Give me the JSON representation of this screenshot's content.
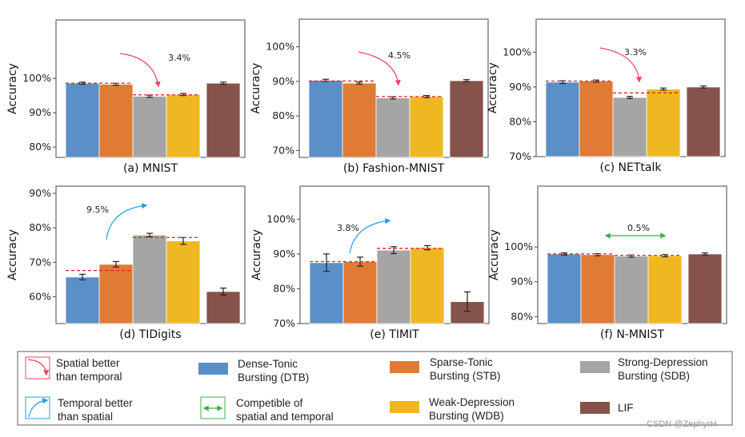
{
  "colors": {
    "DTB": "#5b8fc8",
    "STB": "#e07b35",
    "SDB": "#a5a5a5",
    "WDB": "#efb822",
    "LIF": "#85534b",
    "spatial_arrow": "#f0445e",
    "temporal_arrow": "#2b9de0",
    "competible_arrow": "#3cb043",
    "ref_line": "#e8202a"
  },
  "chart_data": [
    {
      "type": "bar",
      "title": "(a)  MNIST",
      "ylabel": "Accuracy",
      "ylim": [
        77,
        117
      ],
      "yticks": [
        80,
        90,
        100
      ],
      "ytick_labels": [
        "80%",
        "90%",
        "100%"
      ],
      "grid": false,
      "categories": [
        "DTB",
        "STB",
        "SDB",
        "WDB",
        "LIF"
      ],
      "values": [
        98.6,
        98.3,
        94.8,
        95.3,
        98.6
      ],
      "errors": [
        0.3,
        0.3,
        0.3,
        0.3,
        0.3
      ],
      "reference_lines": [
        {
          "from": "DTB",
          "to": "STB",
          "value": 98.6
        },
        {
          "from": "SDB",
          "to": "WDB",
          "value": 95.2
        }
      ],
      "annotation": {
        "kind": "spatial",
        "label": "3.4%"
      }
    },
    {
      "type": "bar",
      "title": "(b)  Fashion-MNIST",
      "ylabel": "Accuracy",
      "ylim": [
        68,
        108
      ],
      "yticks": [
        70,
        80,
        90,
        100
      ],
      "ytick_labels": [
        "70%",
        "80%",
        "90%",
        "100%"
      ],
      "grid": false,
      "categories": [
        "DTB",
        "STB",
        "SDB",
        "WDB",
        "LIF"
      ],
      "values": [
        90.3,
        89.5,
        85.2,
        85.6,
        90.2
      ],
      "errors": [
        0.3,
        0.3,
        0.3,
        0.3,
        0.3
      ],
      "reference_lines": [
        {
          "from": "DTB",
          "to": "STB",
          "value": 90.1
        },
        {
          "from": "SDB",
          "to": "WDB",
          "value": 85.6
        }
      ],
      "annotation": {
        "kind": "spatial",
        "label": "4.5%"
      }
    },
    {
      "type": "bar",
      "title": "(c)  NETtalk",
      "ylabel": "Accuracy",
      "ylim": [
        70,
        109.5
      ],
      "yticks": [
        70,
        80,
        90,
        100
      ],
      "ytick_labels": [
        "70%",
        "80%",
        "90%",
        "100%"
      ],
      "grid": false,
      "categories": [
        "DTB",
        "STB",
        "SDB",
        "WDB",
        "LIF"
      ],
      "values": [
        91.4,
        91.7,
        87.0,
        89.4,
        90.0
      ],
      "errors": [
        0.4,
        0.3,
        0.3,
        0.3,
        0.3
      ],
      "reference_lines": [
        {
          "from": "DTB",
          "to": "STB",
          "value": 91.7
        },
        {
          "from": "SDB",
          "to": "WDB",
          "value": 88.3
        }
      ],
      "annotation": {
        "kind": "spatial",
        "label": "3.3%"
      }
    },
    {
      "type": "bar",
      "title": "(d)  TIDigits",
      "ylabel": "Accuracy",
      "ylim": [
        52.2,
        92.1
      ],
      "yticks": [
        60,
        70,
        80,
        90
      ],
      "ytick_labels": [
        "60%",
        "70%",
        "80%",
        "90%"
      ],
      "grid": false,
      "categories": [
        "DTB",
        "STB",
        "SDB",
        "WDB",
        "LIF"
      ],
      "values": [
        65.7,
        69.4,
        77.9,
        76.2,
        61.5
      ],
      "errors": [
        0.8,
        0.8,
        0.5,
        1.0,
        1.0
      ],
      "reference_lines": [
        {
          "from": "DTB",
          "to": "STB",
          "value": 67.6
        },
        {
          "from": "SDB",
          "to": "WDB",
          "value": 77.2
        }
      ],
      "annotation": {
        "kind": "temporal",
        "label": "9.5%"
      }
    },
    {
      "type": "bar",
      "title": "(e)  TIMIT",
      "ylabel": "Accuracy",
      "ylim": [
        70,
        109.5
      ],
      "yticks": [
        70,
        80,
        90,
        100
      ],
      "ytick_labels": [
        "70%",
        "80%",
        "90%",
        "100%"
      ],
      "grid": false,
      "categories": [
        "DTB",
        "STB",
        "SDB",
        "WDB",
        "LIF"
      ],
      "values": [
        87.5,
        87.8,
        91.1,
        91.8,
        76.3
      ],
      "errors": [
        2.5,
        1.3,
        1.0,
        0.6,
        2.8
      ],
      "reference_lines": [
        {
          "from": "DTB",
          "to": "STB",
          "value": 87.8
        },
        {
          "from": "SDB",
          "to": "WDB",
          "value": 91.6
        }
      ],
      "annotation": {
        "kind": "temporal",
        "label": "3.8%"
      }
    },
    {
      "type": "bar",
      "title": "(f)  N-MNIST",
      "ylabel": "Accuracy",
      "ylim": [
        78,
        117.5
      ],
      "yticks": [
        80,
        90,
        100
      ],
      "ytick_labels": [
        "80%",
        "90%",
        "100%"
      ],
      "grid": false,
      "categories": [
        "DTB",
        "STB",
        "SDB",
        "WDB",
        "LIF"
      ],
      "values": [
        98.0,
        97.8,
        97.4,
        97.5,
        98.0
      ],
      "errors": [
        0.3,
        0.3,
        0.3,
        0.3,
        0.3
      ],
      "reference_lines": [
        {
          "from": "DTB",
          "to": "STB",
          "value": 98.0
        },
        {
          "from": "SDB",
          "to": "WDB",
          "value": 97.6
        }
      ],
      "annotation": {
        "kind": "competible",
        "label": "0.5%"
      }
    }
  ],
  "legend": {
    "placement": "bottom",
    "items": [
      {
        "key": "spatial",
        "icon": "curved-arrow-down-icon",
        "lines": [
          "Spatial better",
          "than temporal"
        ]
      },
      {
        "key": "temporal",
        "icon": "curved-arrow-up-icon",
        "lines": [
          "Temporal better",
          "than spatial"
        ]
      },
      {
        "key": "DTB",
        "lines": [
          "Dense-Tonic",
          "Bursting (DTB)"
        ]
      },
      {
        "key": "competible",
        "icon": "double-arrow-icon",
        "lines": [
          "Competible of",
          "spatial and temporal"
        ]
      },
      {
        "key": "STB",
        "lines": [
          "Sparse-Tonic",
          "Bursting (STB)"
        ]
      },
      {
        "key": "WDB",
        "lines": [
          "Weak-Depression",
          "Bursting (WDB)"
        ]
      },
      {
        "key": "SDB",
        "lines": [
          "Strong-Depression",
          "Bursting (SDB)"
        ]
      },
      {
        "key": "LIF",
        "lines": [
          "LIF"
        ]
      }
    ]
  },
  "watermark": "CSDN @ZephyrH"
}
